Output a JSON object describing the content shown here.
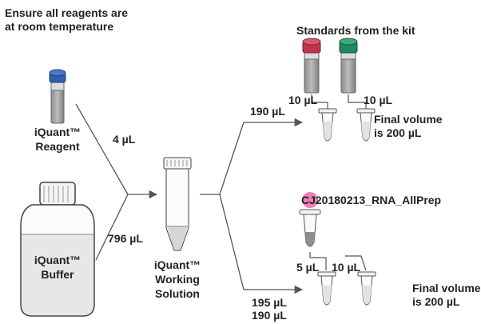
{
  "note": {
    "line1": "Ensure all reagents are",
    "line2": "at room temperature"
  },
  "reagent": {
    "line1": "iQuant™",
    "line2": "Reagent"
  },
  "buffer": {
    "line1": "iQuant™",
    "line2": "Buffer"
  },
  "working_solution": {
    "line1": "iQuant™",
    "line2": "Working",
    "line3": "Solution"
  },
  "volumes": {
    "reagent_vol": "4 µL",
    "buffer_vol": "796 µL",
    "standards_vol": "190 µL",
    "std1_vol": "10 µL",
    "std2_vol": "10 µL",
    "sample_vol": "5 µL",
    "sample2_vol": "10 µL",
    "bottom_vol1": "195 µL",
    "bottom_vol2": "190 µL"
  },
  "standards": {
    "title": "Standards from the kit",
    "final_line1": "Final volume",
    "final_line2": "is 200 µL"
  },
  "sample": {
    "name": "CJ20180213_RNA_AllPrep",
    "final_line1": "Final volume",
    "final_line2": "is 200 µL"
  },
  "colors": {
    "blue_cap": "#2f5fb0",
    "red_cap": "#c0344d",
    "green_cap": "#1f8a5f",
    "pink_highlight": "#e86aa8",
    "line": "#555555"
  }
}
